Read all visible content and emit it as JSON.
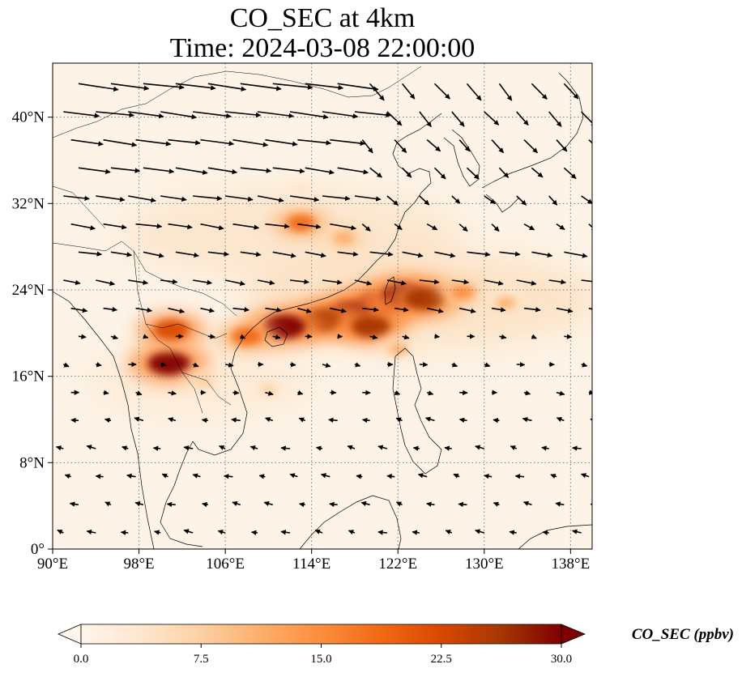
{
  "title": {
    "line1": "CO_SEC at 4km",
    "line2": "Time: 2024-03-08 22:00:00"
  },
  "colors": {
    "cmap": [
      "#fff5eb",
      "#fee6ce",
      "#fdd0a2",
      "#fdae6b",
      "#fd8d3c",
      "#f16913",
      "#d94801",
      "#a63603",
      "#7f0000"
    ]
  },
  "chart_data": {
    "type": "heatmap",
    "map_type": "filled contour map with wind vector overlay",
    "variable": "CO_SEC",
    "level": "4km",
    "time": "2024-03-08 22:00:00",
    "lon_range": [
      90,
      140
    ],
    "lat_range": [
      0,
      45
    ],
    "x_ticks": [
      "90°E",
      "98°E",
      "106°E",
      "114°E",
      "122°E",
      "130°E",
      "138°E"
    ],
    "x_tick_values": [
      90,
      98,
      106,
      114,
      122,
      130,
      138
    ],
    "y_ticks": [
      "0°",
      "8°N",
      "16°N",
      "24°N",
      "32°N",
      "40°N"
    ],
    "y_tick_values": [
      0,
      8,
      16,
      24,
      32,
      40
    ],
    "grid": "dotted",
    "colorbar": {
      "label": "CO_SEC (ppbv)",
      "range": [
        0,
        30
      ],
      "ticks": [
        "0.0",
        "7.5",
        "15.0",
        "22.5",
        "30.0"
      ],
      "extend": "both",
      "orientation": "horizontal"
    },
    "plumes": [
      {
        "lon": 120,
        "lat": 22.6,
        "value": 30
      },
      {
        "lon": 122.5,
        "lat": 23.5,
        "value": 30
      },
      {
        "lon": 124.5,
        "lat": 23.2,
        "value": 28
      },
      {
        "lon": 117.5,
        "lat": 21.8,
        "value": 30
      },
      {
        "lon": 115,
        "lat": 21.2,
        "value": 28
      },
      {
        "lon": 119.5,
        "lat": 20.6,
        "value": 27
      },
      {
        "lon": 111.5,
        "lat": 20.6,
        "value": 30
      },
      {
        "lon": 100.8,
        "lat": 17.2,
        "value": 30
      },
      {
        "lon": 101,
        "lat": 20.3,
        "value": 24
      },
      {
        "lon": 108,
        "lat": 19.7,
        "value": 20
      },
      {
        "lon": 113,
        "lat": 30.2,
        "value": 18
      },
      {
        "lon": 117,
        "lat": 28.8,
        "value": 12
      },
      {
        "lon": 128,
        "lat": 23.8,
        "value": 14
      },
      {
        "lon": 132,
        "lat": 22.8,
        "value": 10
      },
      {
        "lon": 122,
        "lat": 18.5,
        "value": 10
      },
      {
        "lon": 104,
        "lat": 15.5,
        "value": 9
      },
      {
        "lon": 110,
        "lat": 14.8,
        "value": 6
      },
      {
        "lon": 106,
        "lat": 30.8,
        "value": 5
      },
      {
        "lon": 113,
        "lat": 33.2,
        "value": 4
      }
    ],
    "wind_vectors": "quiver field; westerly flow north of 20°N strengthening toward 40°N, weak easterly/northeasterly flow south of 16°N"
  }
}
